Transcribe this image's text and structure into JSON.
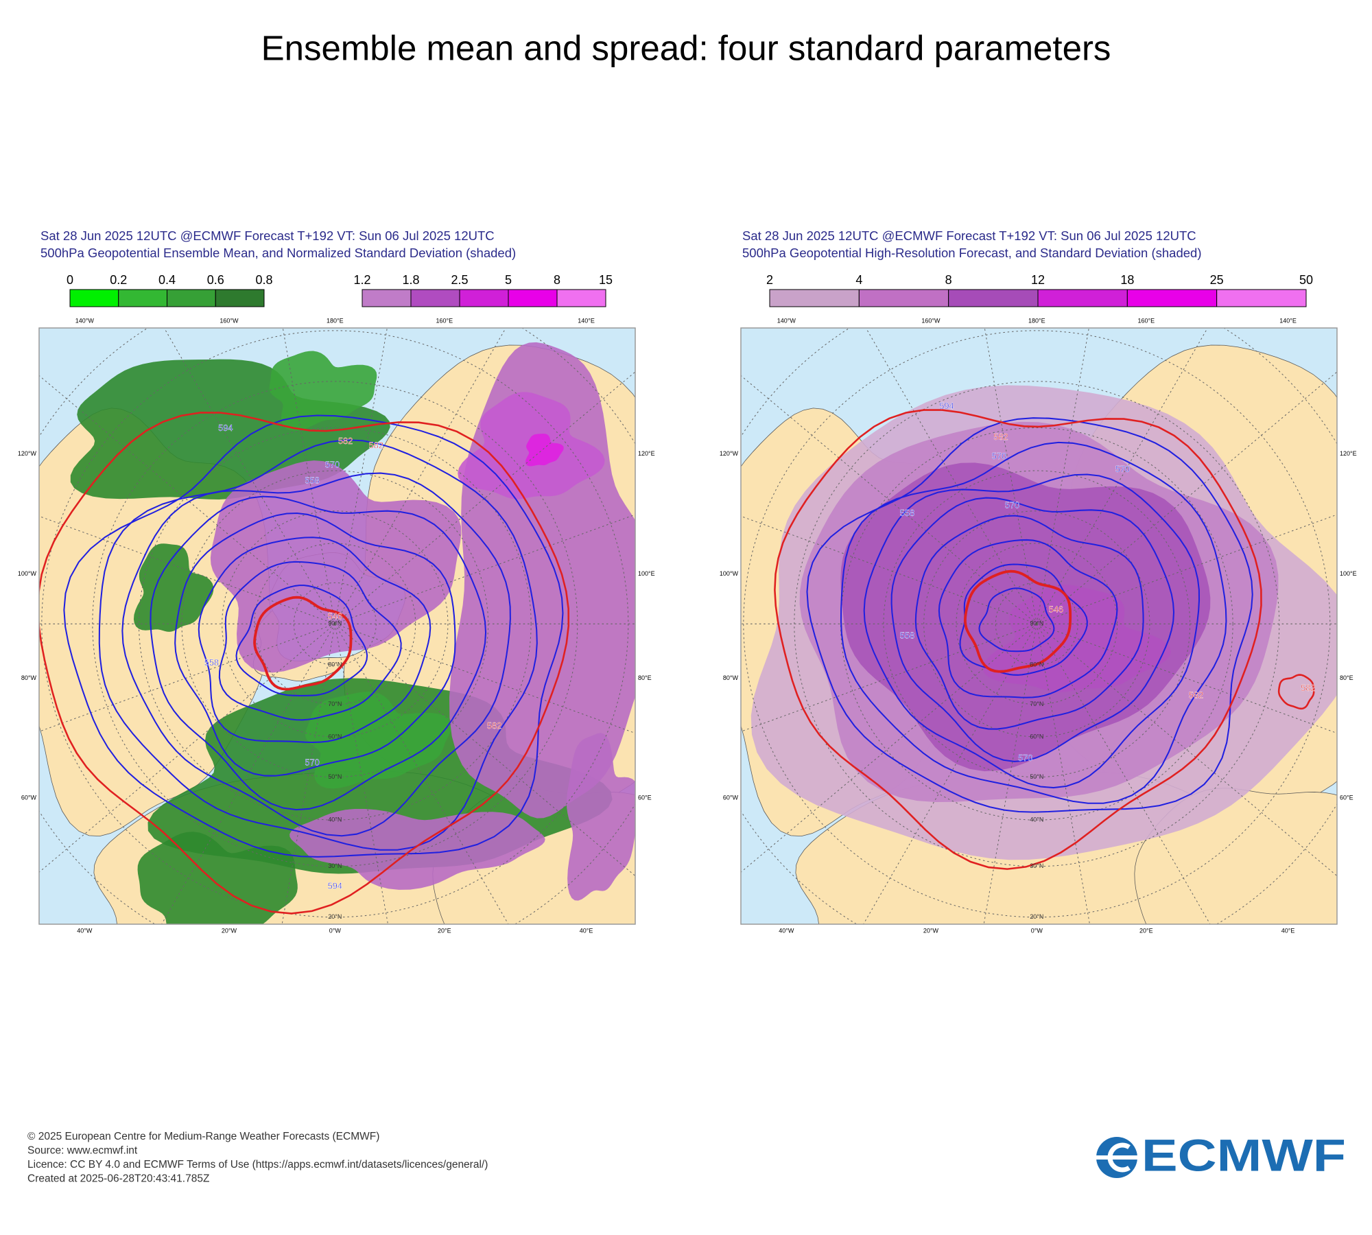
{
  "title": "Ensemble mean and spread: four standard parameters",
  "panels": [
    {
      "header": [
        "Sat 28 Jun 2025 12UTC @ECMWF Forecast T+192 VT: Sun 06 Jul 2025 12UTC",
        "500hPa Geopotential Ensemble Mean, and Normalized Standard Deviation (shaded)"
      ],
      "colorbars": [
        {
          "ticks": [
            "0",
            "0.2",
            "0.4",
            "0.6",
            "0.8"
          ],
          "colors": [
            "#00f000",
            "#33b833",
            "#36a036",
            "#2e7a2e"
          ]
        },
        {
          "ticks": [
            "1.2",
            "1.8",
            "2.5",
            "5",
            "8",
            "15"
          ],
          "colors": [
            "#c07cc8",
            "#b04cc0",
            "#d020d8",
            "#e800e8",
            "#f070f0"
          ]
        }
      ],
      "lon_labels": {
        "top": [
          "140°W",
          "160°W",
          "180°E",
          "160°E",
          "140°E"
        ],
        "left": [
          "120°W",
          "100°W",
          "80°W",
          "60°W"
        ],
        "right": [
          "120°E",
          "100°E",
          "80°E",
          "60°E"
        ],
        "bottom": [
          "40°W",
          "20°W",
          "0°W",
          "20°E",
          "40°E"
        ]
      },
      "lat_labels": [
        "90°N",
        "80°N",
        "70°N",
        "60°N",
        "50°N",
        "40°N",
        "30°N",
        "20°N"
      ],
      "contour_labels": [
        "594",
        "582",
        "582",
        "570",
        "558",
        "546",
        "558",
        "582",
        "570",
        "594"
      ]
    },
    {
      "header": [
        "Sat 28 Jun 2025 12UTC @ECMWF Forecast T+192 VT: Sun 06 Jul 2025 12UTC",
        "500hPa Geopotential High-Resolution Forecast, and Standard Deviation (shaded)"
      ],
      "colorbars": [
        {
          "ticks": [
            "2",
            "4",
            "8",
            "12",
            "18",
            "25",
            "50"
          ],
          "colors": [
            "#c9a2c9",
            "#c070c4",
            "#a64cb8",
            "#d020d8",
            "#e800e8",
            "#f070f0"
          ]
        }
      ],
      "lon_labels": {
        "top": [
          "140°W",
          "160°W",
          "180°E",
          "160°E",
          "140°E"
        ],
        "left": [
          "120°W",
          "100°W",
          "80°W",
          "60°W"
        ],
        "right": [
          "120°E",
          "100°E",
          "80°E",
          "60°E"
        ],
        "bottom": [
          "40°W",
          "20°W",
          "0°W",
          "20°E",
          "40°E"
        ]
      },
      "lat_labels": [
        "90°N",
        "80°N",
        "70°N",
        "60°N",
        "50°N",
        "40°N",
        "30°N",
        "20°N"
      ],
      "contour_labels": [
        "594",
        "582",
        "570",
        "570",
        "558",
        "570",
        "546",
        "558",
        "582",
        "582",
        "570"
      ]
    }
  ],
  "footer": [
    "© 2025 European Centre for Medium-Range Weather Forecasts (ECMWF)",
    "Source: www.ecmwf.int",
    "Licence: CC BY 4.0 and ECMWF Terms of Use (https://apps.ecmwf.int/datasets/licences/general/)",
    "Created at 2025-06-28T20:43:41.785Z"
  ],
  "logo": "ECMWF"
}
